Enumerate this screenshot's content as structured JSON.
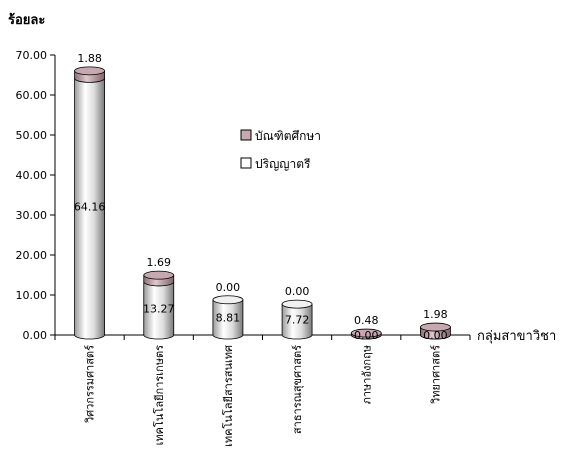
{
  "chart_data": {
    "type": "bar",
    "style": "3d-stacked-cylinder",
    "ylabel": "ร้อยละ",
    "xlabel": "กลุ่มสาขาวิชา",
    "ylim": [
      0,
      70
    ],
    "yticks": [
      "0.00",
      "10.00",
      "20.00",
      "30.00",
      "40.00",
      "50.00",
      "60.00",
      "70.00"
    ],
    "categories": [
      "วิศวกรรมศาสตร์",
      "เทคโนโลยีการเกษตร",
      "เทคโนโลยีสารสนเทศ",
      "สาธารณสุขศาสตร์",
      "ภาษาอังกฤษ",
      "วิทยาศาสตร์"
    ],
    "series": [
      {
        "name": "ปริญญาตรี",
        "values": [
          64.16,
          13.27,
          8.81,
          7.72,
          0.0,
          0.0
        ],
        "labels": [
          "64.16",
          "13.27",
          "8.81",
          "7.72",
          "0.00",
          "0.00"
        ],
        "color": "#ffffff"
      },
      {
        "name": "บัณฑิตศึกษา",
        "values": [
          1.88,
          1.69,
          0.0,
          0.0,
          0.48,
          1.98
        ],
        "labels": [
          "1.88",
          "1.69",
          "0.00",
          "0.00",
          "0.48",
          "1.98"
        ],
        "color": "#c8a8b0"
      }
    ],
    "legend": {
      "position": "right",
      "order": [
        "บัณฑิตศึกษา",
        "ปริญญาตรี"
      ]
    },
    "grid": false
  }
}
